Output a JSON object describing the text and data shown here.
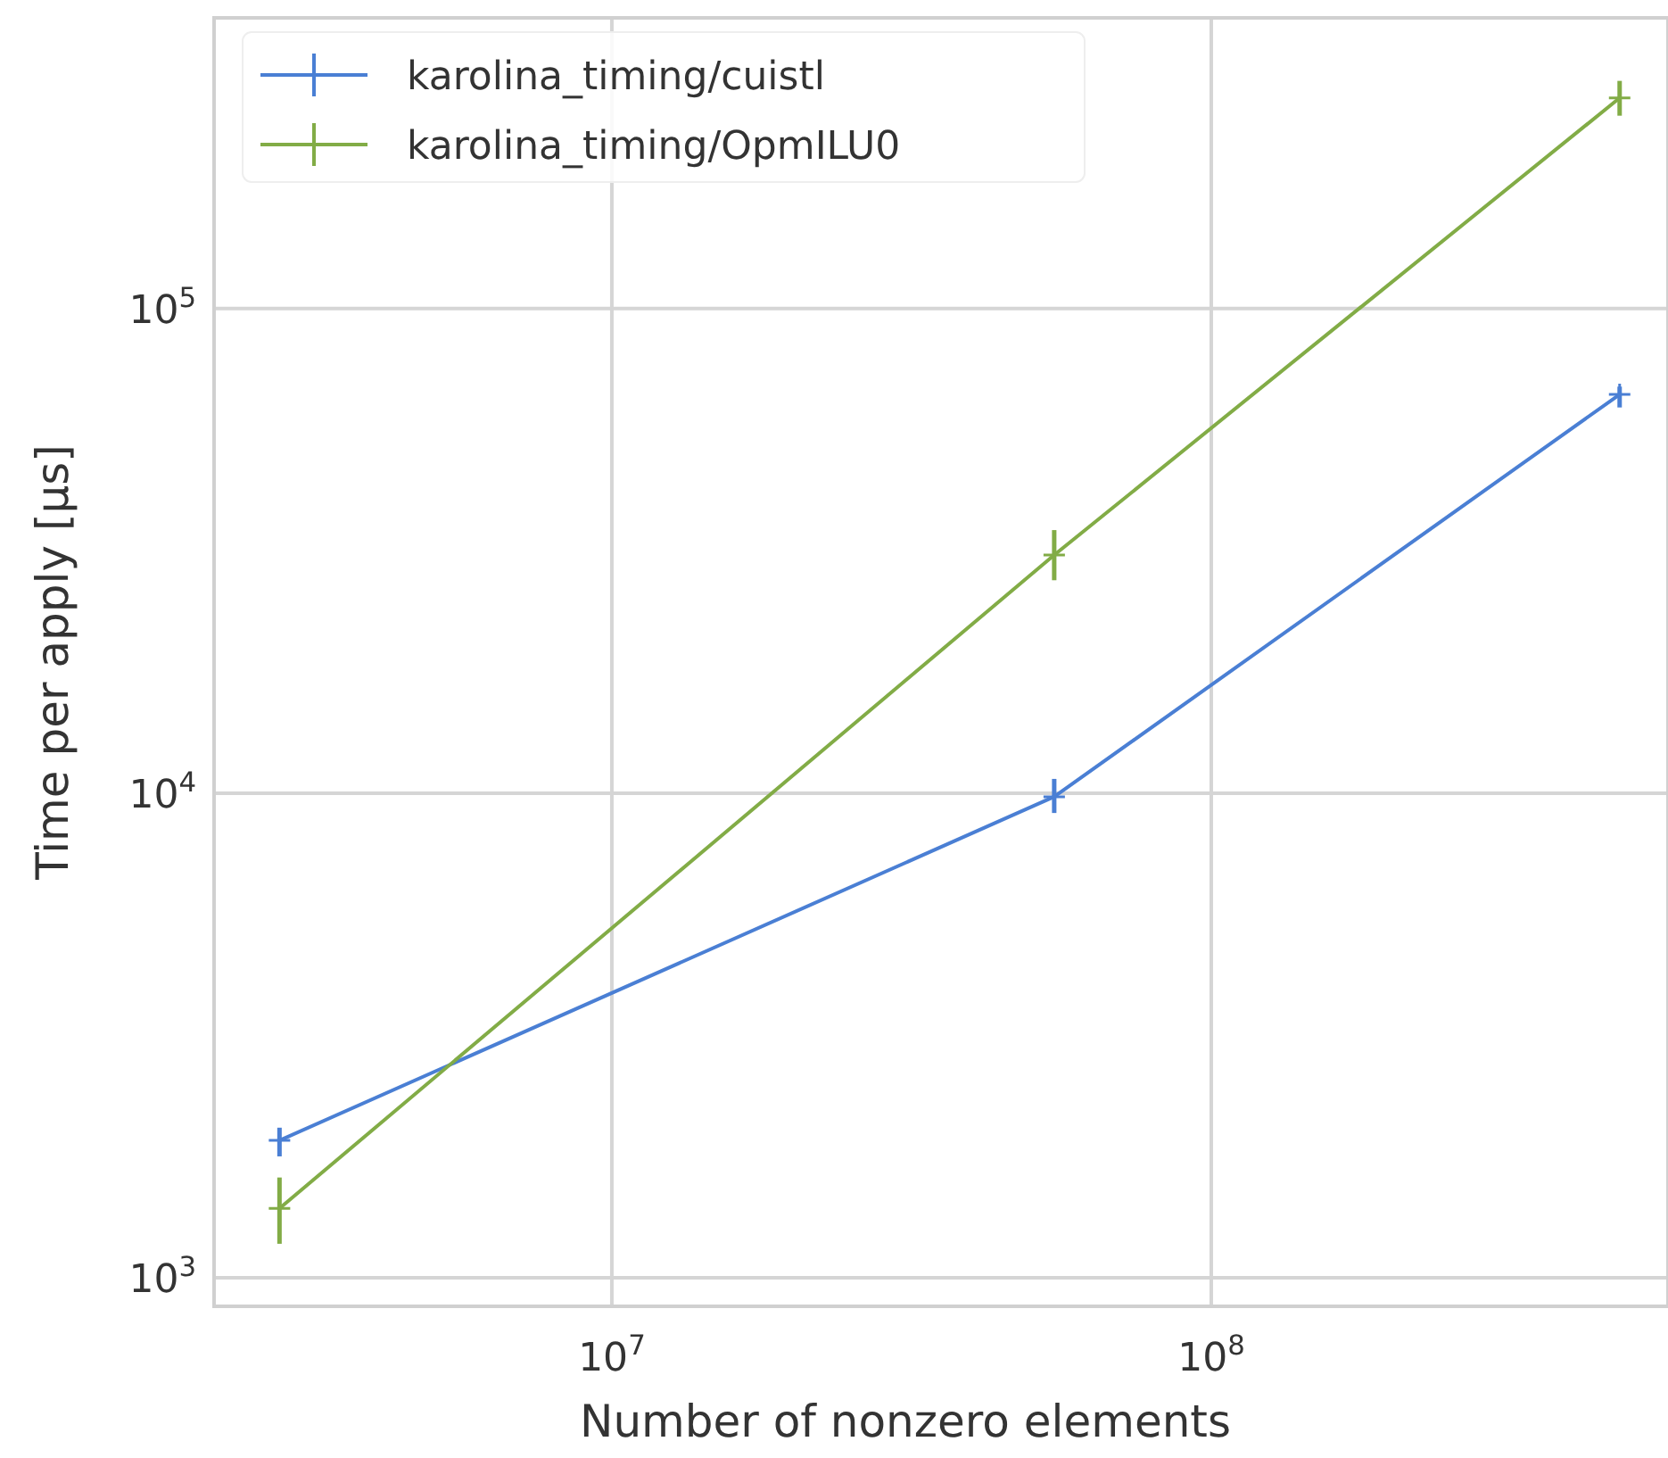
{
  "chart_data": {
    "type": "line",
    "xlabel": "Number of nonzero elements",
    "ylabel": "Time per apply [µs]",
    "x": [
      2790000,
      54700000,
      480000000
    ],
    "series": [
      {
        "name": "karolina_timing/cuistl",
        "color": "#4a7fd4",
        "values": [
          1920,
          9830,
          66500
        ],
        "errors": [
          [
            1780,
            2040
          ],
          [
            9100,
            10700
          ],
          [
            62500,
            69000
          ]
        ]
      },
      {
        "name": "karolina_timing/OpmILU0",
        "color": "#82ac46",
        "values": [
          1390,
          31000,
          272000
        ],
        "errors": [
          [
            1175,
            1610
          ],
          [
            27500,
            34900
          ],
          [
            250000,
            295000
          ]
        ]
      }
    ],
    "log": "xy",
    "xlim": [
      2170000,
      578000000
    ],
    "ylim": [
      873,
      398000
    ],
    "xticks": [
      {
        "value": 10000000,
        "label": "10$^{7}$"
      },
      {
        "value": 100000000,
        "label": "10$^{8}$"
      }
    ],
    "yticks": [
      {
        "value": 1000,
        "label": "10$^{3}$"
      },
      {
        "value": 10000,
        "label": "10$^{4}$"
      },
      {
        "value": 100000,
        "label": "10$^{5}$"
      }
    ],
    "grid": true,
    "legend": "top left",
    "marker": "cross",
    "line_style": "solid"
  }
}
